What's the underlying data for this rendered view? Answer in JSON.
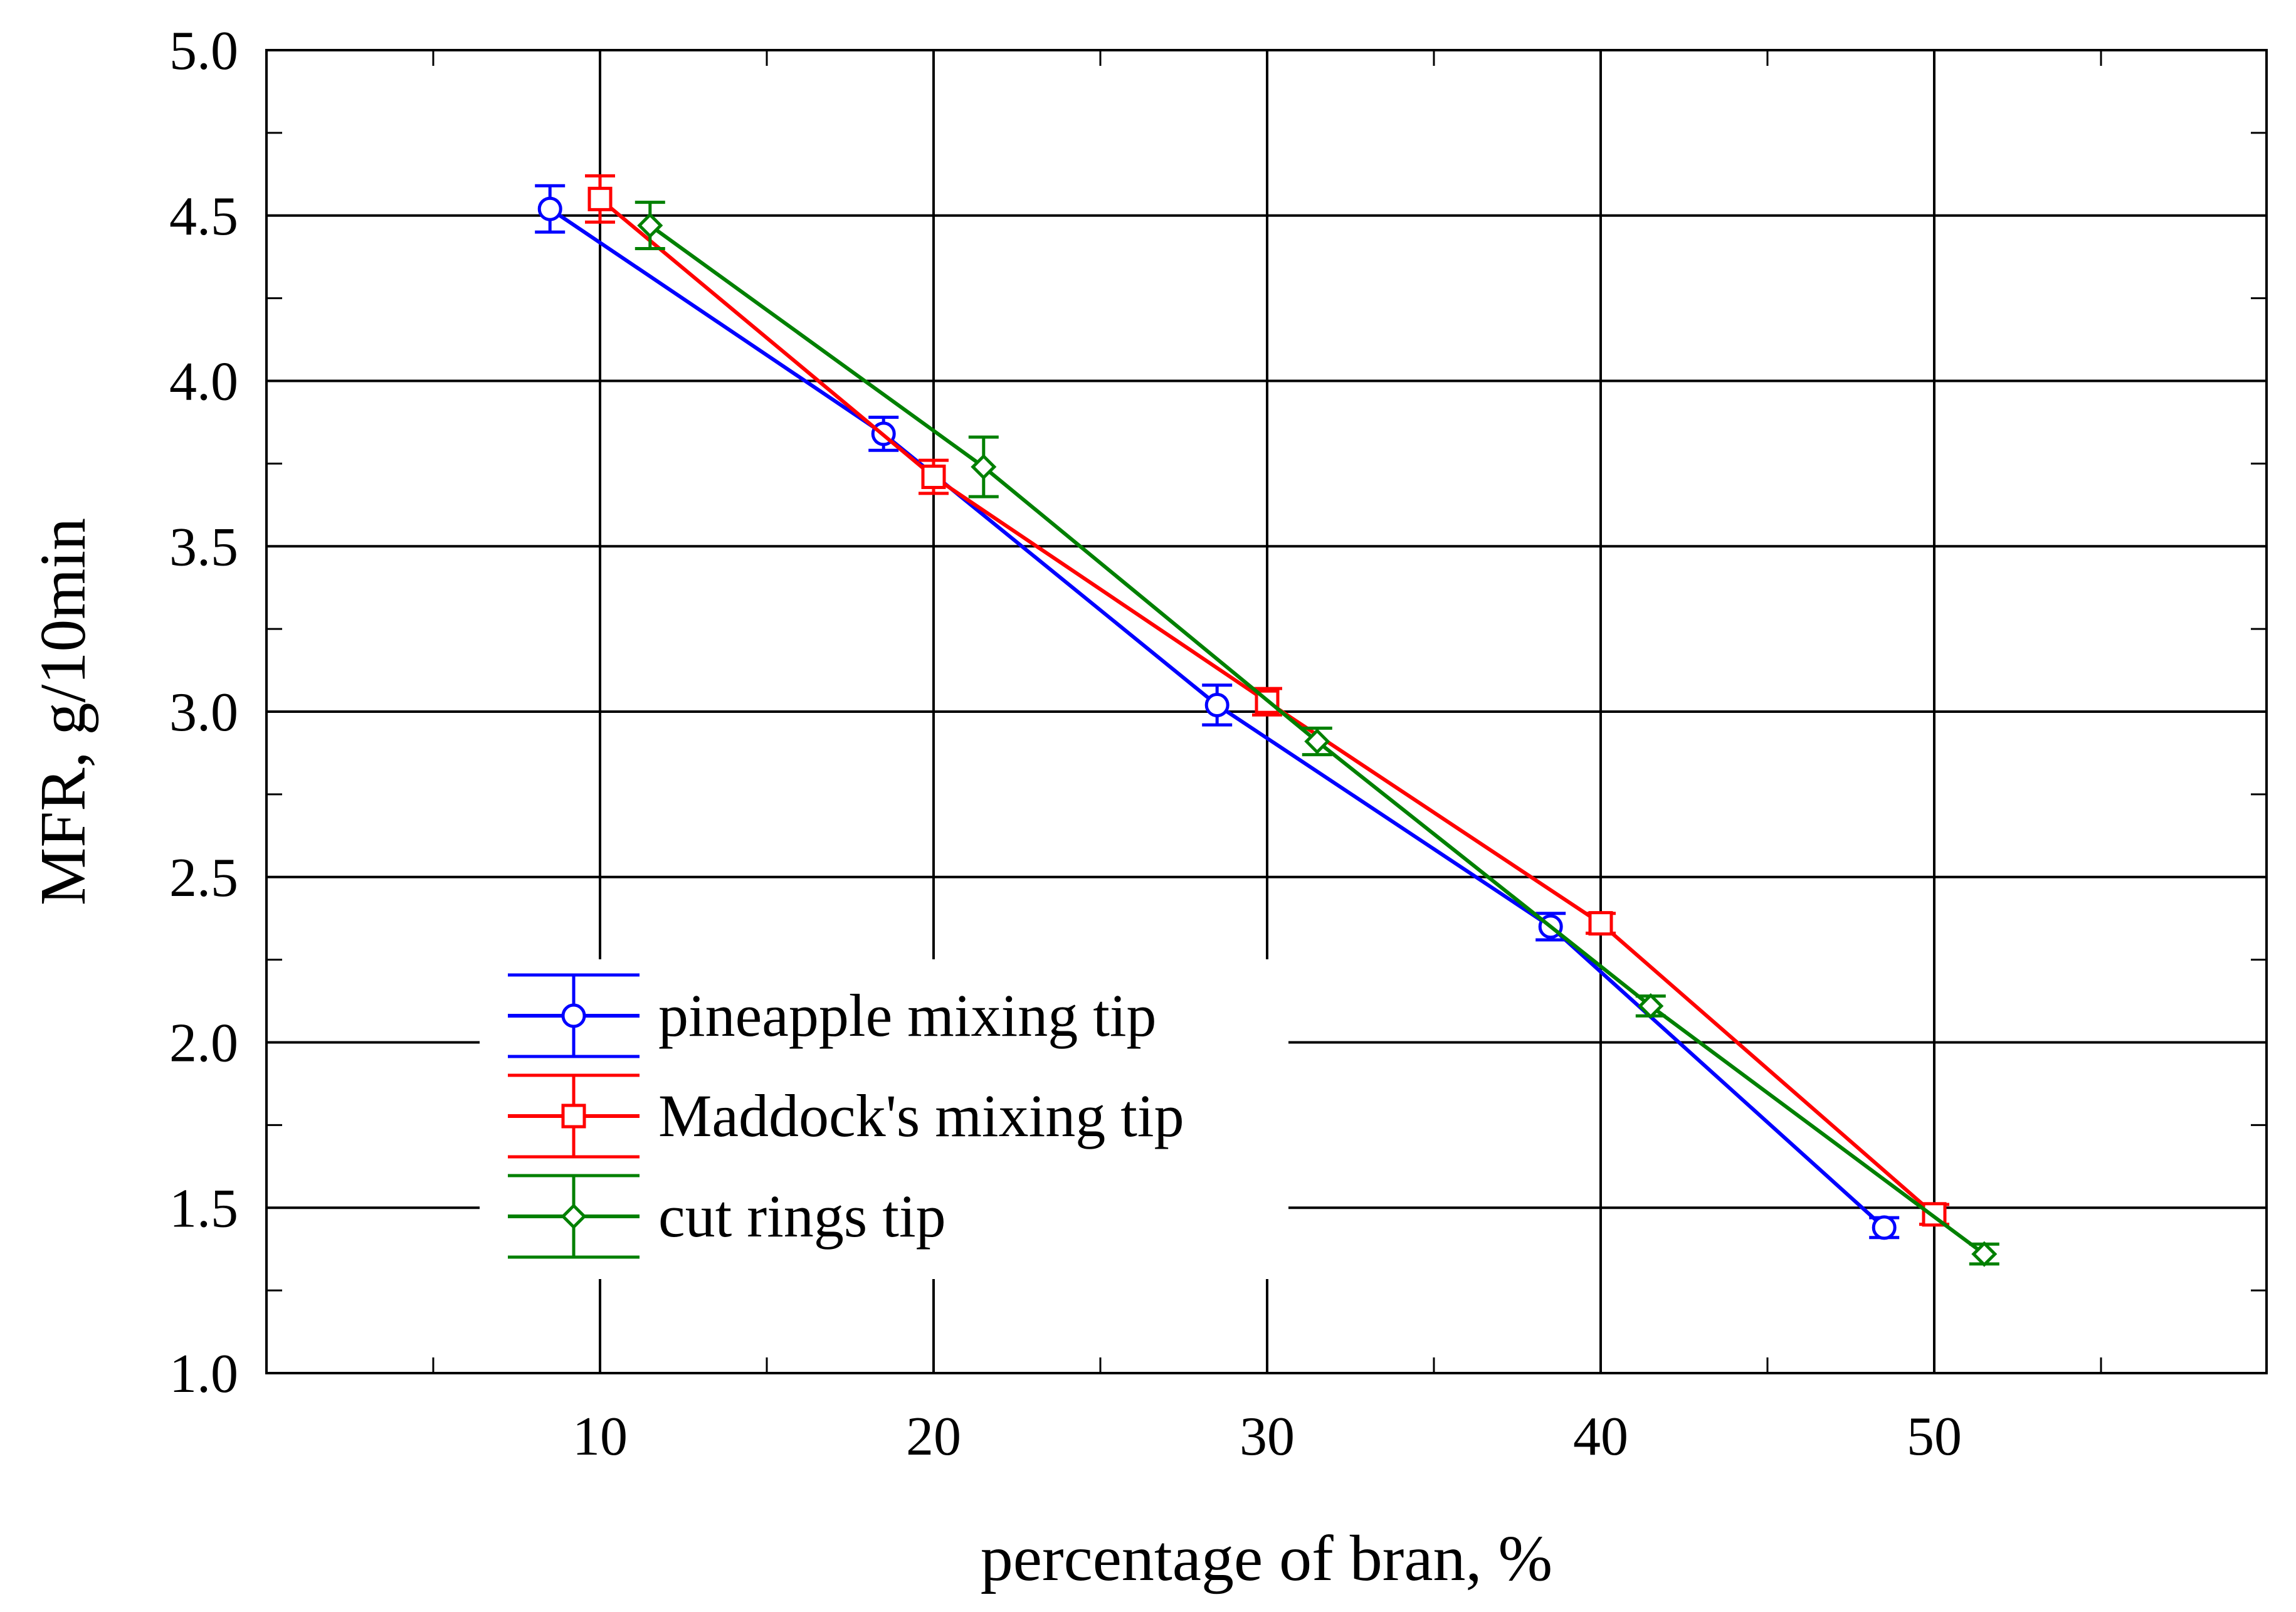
{
  "chart_data": {
    "type": "line",
    "title": "",
    "xlabel": "percentage of bran, %",
    "ylabel": "MFR, g/10min",
    "xlim": [
      0,
      60
    ],
    "ylim": [
      1.0,
      5.0
    ],
    "x_ticks": [
      10,
      20,
      30,
      40,
      50
    ],
    "x_tick_labels": [
      "10",
      "20",
      "30",
      "40",
      "50"
    ],
    "y_ticks": [
      1.0,
      1.5,
      2.0,
      2.5,
      3.0,
      3.5,
      4.0,
      4.5,
      5.0
    ],
    "y_tick_labels": [
      "1.0",
      "1.5",
      "2.0",
      "2.5",
      "3.0",
      "3.5",
      "4.0",
      "4.5",
      "5.0"
    ],
    "grid": true,
    "legend_position": "bottom-left",
    "series": [
      {
        "name": "pineapple mixing tip",
        "color": "#0000ff",
        "marker": "circle",
        "x": [
          8.5,
          18.5,
          28.5,
          38.5,
          48.5
        ],
        "y": [
          4.52,
          3.84,
          3.02,
          2.35,
          1.44
        ],
        "error": [
          0.07,
          0.05,
          0.06,
          0.04,
          0.03
        ]
      },
      {
        "name": "Maddock's mixing tip",
        "color": "#ff0000",
        "marker": "square",
        "x": [
          10,
          20,
          30,
          40,
          50
        ],
        "y": [
          4.55,
          3.71,
          3.03,
          2.36,
          1.48
        ],
        "error": [
          0.07,
          0.05,
          0.04,
          0.03,
          0.03
        ]
      },
      {
        "name": "cut rings tip",
        "color": "#008000",
        "marker": "diamond",
        "x": [
          11.5,
          21.5,
          31.5,
          41.5,
          51.5
        ],
        "y": [
          4.47,
          3.74,
          2.91,
          2.11,
          1.36
        ],
        "error": [
          0.07,
          0.09,
          0.04,
          0.03,
          0.03
        ]
      }
    ]
  }
}
